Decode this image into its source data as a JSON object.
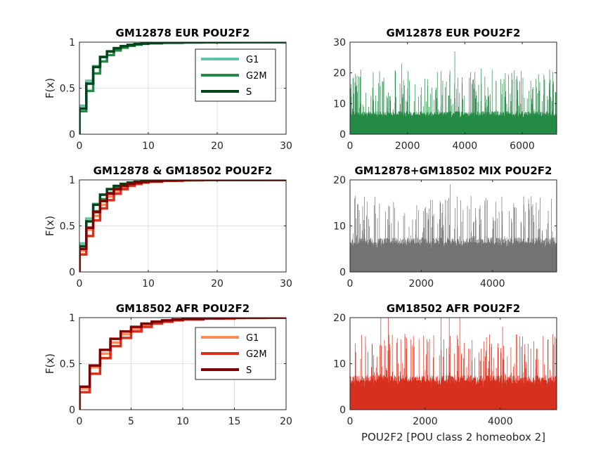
{
  "chart_data": [
    {
      "id": "ecdf-eur",
      "type": "line",
      "subtype": "ecdf-stairs",
      "title": "GM12878 EUR POU2F2",
      "xlabel": "",
      "ylabel": "F(x)",
      "xlim": [
        0,
        30
      ],
      "ylim": [
        0,
        1
      ],
      "xticks": [
        0,
        10,
        20,
        30
      ],
      "yticks": [
        0,
        0.5,
        1
      ],
      "grid": true,
      "legend": "top-right",
      "series": [
        {
          "name": "G1",
          "color": "#66c2a4",
          "x": [
            0,
            1,
            2,
            3,
            4,
            5,
            6,
            7,
            8,
            9,
            10,
            12,
            14,
            17,
            20,
            24,
            27
          ],
          "y": [
            0.31,
            0.58,
            0.74,
            0.84,
            0.9,
            0.93,
            0.955,
            0.97,
            0.978,
            0.985,
            0.99,
            0.993,
            0.996,
            0.998,
            0.999,
            0.9995,
            1
          ]
        },
        {
          "name": "G2M",
          "color": "#238b45",
          "x": [
            0,
            1,
            2,
            3,
            4,
            5,
            6,
            7,
            8,
            9,
            10,
            12,
            15,
            18,
            23
          ],
          "y": [
            0.25,
            0.47,
            0.66,
            0.79,
            0.86,
            0.91,
            0.94,
            0.96,
            0.973,
            0.982,
            0.988,
            0.993,
            0.997,
            0.999,
            1
          ]
        },
        {
          "name": "S",
          "color": "#00441b",
          "x": [
            0,
            1,
            2,
            3,
            4,
            5,
            6,
            7,
            8,
            9,
            10,
            12,
            15,
            18,
            22
          ],
          "y": [
            0.28,
            0.55,
            0.73,
            0.84,
            0.9,
            0.935,
            0.957,
            0.97,
            0.98,
            0.986,
            0.99,
            0.995,
            0.998,
            0.999,
            1
          ]
        }
      ]
    },
    {
      "id": "hist-eur",
      "type": "bar",
      "title": "GM12878 EUR POU2F2",
      "xlabel": "",
      "xlim": [
        0,
        7200
      ],
      "ylim": [
        0,
        30
      ],
      "xticks": [
        0,
        2000,
        4000,
        6000
      ],
      "yticks": [
        0,
        10,
        20,
        30
      ],
      "color": "#238b45",
      "n": 7200,
      "peaks": [
        {
          "x": 1800,
          "y": 23
        },
        {
          "x": 3650,
          "y": 27
        },
        {
          "x": 6480,
          "y": 18
        }
      ],
      "series": []
    },
    {
      "id": "ecdf-mix",
      "type": "line",
      "subtype": "ecdf-stairs",
      "title": "GM12878 & GM18502 POU2F2",
      "xlabel": "",
      "ylabel": "F(x)",
      "xlim": [
        0,
        30
      ],
      "ylim": [
        0,
        1
      ],
      "xticks": [
        0,
        10,
        20,
        30
      ],
      "yticks": [
        0,
        0.5,
        1
      ],
      "grid": true,
      "series": [
        {
          "name": "G1",
          "color": "#66c2a4",
          "x": [
            0,
            1,
            2,
            3,
            4,
            5,
            6,
            7,
            8,
            9,
            10,
            12,
            14,
            17,
            20,
            24,
            27
          ],
          "y": [
            0.31,
            0.58,
            0.74,
            0.84,
            0.9,
            0.93,
            0.955,
            0.97,
            0.978,
            0.985,
            0.99,
            0.993,
            0.996,
            0.998,
            0.999,
            0.9995,
            1
          ]
        },
        {
          "name": "G2M",
          "color": "#238b45",
          "x": [
            0,
            1,
            2,
            3,
            4,
            5,
            6,
            7,
            8,
            9,
            10,
            12,
            15,
            18,
            23
          ],
          "y": [
            0.25,
            0.47,
            0.66,
            0.79,
            0.86,
            0.91,
            0.94,
            0.96,
            0.973,
            0.982,
            0.988,
            0.993,
            0.997,
            0.999,
            1
          ]
        },
        {
          "name": "S",
          "color": "#00441b",
          "x": [
            0,
            1,
            2,
            3,
            4,
            5,
            6,
            7,
            8,
            9,
            10,
            12,
            15,
            18,
            22
          ],
          "y": [
            0.28,
            0.55,
            0.73,
            0.84,
            0.9,
            0.935,
            0.957,
            0.97,
            0.98,
            0.986,
            0.99,
            0.995,
            0.998,
            0.999,
            1
          ]
        },
        {
          "name": "G1",
          "color": "#fc8d59",
          "x": [
            0,
            1,
            2,
            3,
            4,
            5,
            6,
            7,
            8,
            9,
            10,
            12,
            14,
            16,
            18
          ],
          "y": [
            0.23,
            0.46,
            0.61,
            0.73,
            0.82,
            0.88,
            0.92,
            0.95,
            0.965,
            0.975,
            0.985,
            0.992,
            0.996,
            0.998,
            1
          ]
        },
        {
          "name": "G2M",
          "color": "#d7301f",
          "x": [
            0,
            1,
            2,
            3,
            4,
            5,
            6,
            7,
            8,
            9,
            10,
            12,
            15,
            18,
            20
          ],
          "y": [
            0.19,
            0.39,
            0.56,
            0.69,
            0.78,
            0.85,
            0.9,
            0.935,
            0.955,
            0.97,
            0.98,
            0.99,
            0.996,
            0.999,
            1
          ]
        },
        {
          "name": "S",
          "color": "#7f0000",
          "x": [
            0,
            1,
            2,
            3,
            4,
            5,
            6,
            7,
            8,
            9,
            10,
            12,
            14,
            16
          ],
          "y": [
            0.25,
            0.48,
            0.65,
            0.77,
            0.85,
            0.9,
            0.935,
            0.957,
            0.97,
            0.98,
            0.987,
            0.994,
            0.998,
            1
          ]
        }
      ]
    },
    {
      "id": "hist-mix",
      "type": "bar",
      "title": "GM12878+GM18502 MIX POU2F2",
      "xlabel": "",
      "xlim": [
        0,
        5800
      ],
      "ylim": [
        0,
        20
      ],
      "xticks": [
        0,
        2000,
        4000
      ],
      "yticks": [
        0,
        10,
        20
      ],
      "color": "#737373",
      "n": 5800,
      "peaks": [
        {
          "x": 2810,
          "y": 19
        },
        {
          "x": 2540,
          "y": 15
        },
        {
          "x": 4630,
          "y": 14
        }
      ],
      "series": []
    },
    {
      "id": "ecdf-afr",
      "type": "line",
      "subtype": "ecdf-stairs",
      "title": "GM18502 AFR POU2F2",
      "xlabel": "",
      "ylabel": "F(x)",
      "xlim": [
        0,
        20
      ],
      "ylim": [
        0,
        1
      ],
      "xticks": [
        0,
        5,
        10,
        15,
        20
      ],
      "yticks": [
        0,
        0.5,
        1
      ],
      "grid": true,
      "legend": "top-right",
      "series": [
        {
          "name": "G1",
          "color": "#fc8d59",
          "x": [
            0,
            1,
            2,
            3,
            4,
            5,
            6,
            7,
            8,
            9,
            10,
            12,
            14,
            16,
            18
          ],
          "y": [
            0.23,
            0.46,
            0.61,
            0.73,
            0.82,
            0.88,
            0.92,
            0.95,
            0.965,
            0.975,
            0.985,
            0.992,
            0.996,
            0.998,
            1
          ]
        },
        {
          "name": "G2M",
          "color": "#d7301f",
          "x": [
            0,
            1,
            2,
            3,
            4,
            5,
            6,
            7,
            8,
            9,
            10,
            12,
            15,
            18,
            20
          ],
          "y": [
            0.19,
            0.39,
            0.56,
            0.69,
            0.78,
            0.85,
            0.9,
            0.935,
            0.955,
            0.97,
            0.98,
            0.99,
            0.996,
            0.999,
            1
          ]
        },
        {
          "name": "S",
          "color": "#7f0000",
          "x": [
            0,
            1,
            2,
            3,
            4,
            5,
            6,
            7,
            8,
            9,
            10,
            12,
            14,
            16
          ],
          "y": [
            0.25,
            0.48,
            0.65,
            0.77,
            0.85,
            0.9,
            0.935,
            0.957,
            0.97,
            0.98,
            0.987,
            0.994,
            0.998,
            1
          ]
        }
      ]
    },
    {
      "id": "hist-afr",
      "type": "bar",
      "title": "GM18502 AFR POU2F2",
      "xlabel": "POU2F2 [POU class 2 homeobox 2]",
      "xlim": [
        0,
        5500
      ],
      "ylim": [
        0,
        20
      ],
      "xticks": [
        0,
        2000,
        4000
      ],
      "yticks": [
        0,
        10,
        20
      ],
      "color": "#d7301f",
      "n": 5500,
      "peaks": [
        {
          "x": 820,
          "y": 20
        },
        {
          "x": 1020,
          "y": 20
        },
        {
          "x": 2420,
          "y": 20
        },
        {
          "x": 2640,
          "y": 20
        },
        {
          "x": 2920,
          "y": 20
        },
        {
          "x": 4060,
          "y": 18
        },
        {
          "x": 5140,
          "y": 16
        }
      ],
      "series": []
    }
  ]
}
